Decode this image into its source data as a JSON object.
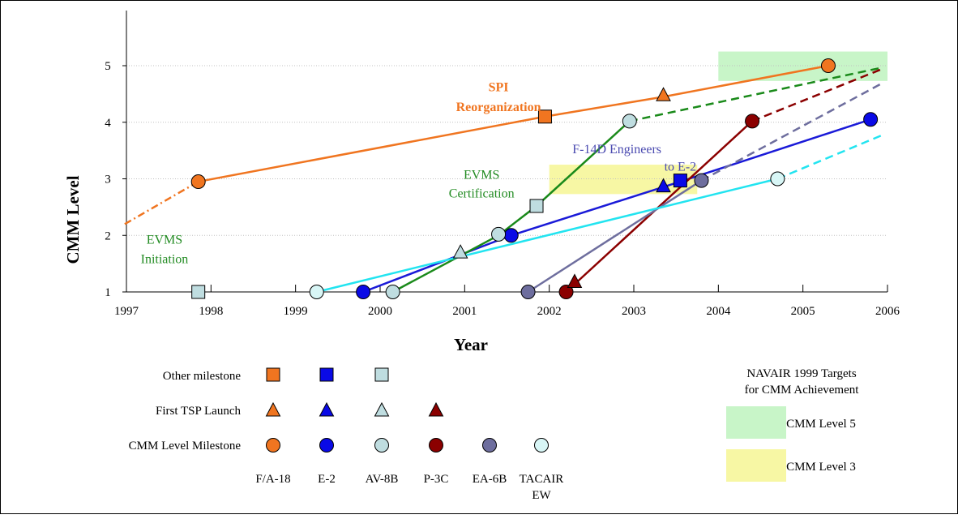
{
  "colors": {
    "F/A-18": "#f07520",
    "E-2": "#0a0ae6",
    "AV-8B": "#bfdde0",
    "P-3C": "#8b0000",
    "EA-6B": "#6e6e9e",
    "TACAIR EW": "#d8f6f6",
    "F/A-18 line": "#f07520",
    "E-2 line": "#1a1ad8",
    "AV-8B line": "#1a8a1a",
    "P-3C line": "#8b0000",
    "EA-6B line": "#6e6e9e",
    "TACAIR EW line": "#22e4f0",
    "target5": "#c8f5c8",
    "target3": "#f7f7a4",
    "grid": "#c0c0c0",
    "evms_text": "#228b22",
    "spi_text": "#f07520",
    "f14_text": "#4a4ab0"
  },
  "chart_data": {
    "type": "line",
    "xlabel": "Year",
    "ylabel": "CMM Level",
    "xlim": [
      1997,
      2006
    ],
    "ylim": [
      1,
      5.9
    ],
    "x_ticks": [
      "1997",
      "1998",
      "1999",
      "2000",
      "2001",
      "2002",
      "2003",
      "2004",
      "2005",
      "2006"
    ],
    "y_ticks": [
      "1",
      "2",
      "3",
      "4",
      "5"
    ],
    "grid": "horizontal dotted",
    "series": [
      {
        "name": "F/A-18",
        "points": [
          [
            1996.98,
            2.2
          ],
          [
            1997.85,
            2.95
          ],
          [
            2001.95,
            4.1
          ],
          [
            2003.35,
            4.45
          ],
          [
            2005.3,
            5.0
          ],
          [
            2005.95,
            5.0
          ]
        ],
        "segments": [
          [
            "dashdot",
            0,
            1
          ],
          [
            "solid",
            1,
            4
          ]
        ],
        "markers": [
          {
            "x": 1997.85,
            "y": 2.95,
            "shape": "circle"
          },
          {
            "x": 2001.95,
            "y": 4.1,
            "shape": "square"
          },
          {
            "x": 2003.35,
            "y": 4.48,
            "shape": "triangle"
          },
          {
            "x": 2005.3,
            "y": 5.0,
            "shape": "circle"
          }
        ]
      },
      {
        "name": "E-2",
        "points": [
          [
            1999.8,
            1.0
          ],
          [
            2001.55,
            2.0
          ],
          [
            2003.55,
            2.95
          ],
          [
            2005.8,
            4.05
          ]
        ],
        "segments": [
          [
            "solid",
            0,
            3
          ]
        ],
        "markers": [
          {
            "x": 1999.8,
            "y": 1.0,
            "shape": "circle"
          },
          {
            "x": 2001.55,
            "y": 2.0,
            "shape": "circle"
          },
          {
            "x": 2003.35,
            "y": 2.87,
            "shape": "triangle"
          },
          {
            "x": 2003.55,
            "y": 2.97,
            "shape": "square"
          },
          {
            "x": 2005.8,
            "y": 4.05,
            "shape": "circle"
          }
        ]
      },
      {
        "name": "AV-8B",
        "points": [
          [
            2000.15,
            1.0
          ],
          [
            2001.4,
            2.0
          ],
          [
            2001.85,
            2.52
          ],
          [
            2002.95,
            4.02
          ],
          [
            2005.95,
            4.97
          ]
        ],
        "segments": [
          [
            "solid",
            0,
            3
          ],
          [
            "dash",
            3,
            4
          ]
        ],
        "markers": [
          {
            "x": 2000.15,
            "y": 1.0,
            "shape": "circle"
          },
          {
            "x": 2001.4,
            "y": 2.02,
            "shape": "circle"
          },
          {
            "x": 2000.95,
            "y": 1.7,
            "shape": "triangle"
          },
          {
            "x": 2001.85,
            "y": 2.52,
            "shape": "square"
          },
          {
            "x": 2002.95,
            "y": 4.02,
            "shape": "circle"
          },
          {
            "x": 1997.85,
            "y": 1.0,
            "shape": "square"
          }
        ]
      },
      {
        "name": "P-3C",
        "points": [
          [
            2002.2,
            1.0
          ],
          [
            2004.4,
            4.02
          ],
          [
            2005.95,
            4.95
          ]
        ],
        "segments": [
          [
            "solid",
            0,
            1
          ],
          [
            "dash",
            1,
            2
          ]
        ],
        "markers": [
          {
            "x": 2002.2,
            "y": 1.0,
            "shape": "circle"
          },
          {
            "x": 2002.3,
            "y": 1.18,
            "shape": "triangle"
          },
          {
            "x": 2004.4,
            "y": 4.02,
            "shape": "circle"
          }
        ]
      },
      {
        "name": "EA-6B",
        "points": [
          [
            2001.75,
            1.0
          ],
          [
            2003.8,
            2.97
          ],
          [
            2005.95,
            4.7
          ]
        ],
        "segments": [
          [
            "solid",
            0,
            1
          ],
          [
            "dash",
            1,
            2
          ]
        ],
        "markers": [
          {
            "x": 2001.75,
            "y": 1.0,
            "shape": "circle"
          },
          {
            "x": 2003.8,
            "y": 2.97,
            "shape": "circle"
          }
        ]
      },
      {
        "name": "TACAIR EW",
        "points": [
          [
            1999.25,
            1.0
          ],
          [
            2004.7,
            3.0
          ],
          [
            2005.95,
            3.78
          ]
        ],
        "segments": [
          [
            "solid",
            0,
            1
          ],
          [
            "dash",
            1,
            2
          ]
        ],
        "markers": [
          {
            "x": 1999.25,
            "y": 1.0,
            "shape": "circle"
          },
          {
            "x": 2004.7,
            "y": 3.0,
            "shape": "circle"
          }
        ]
      }
    ],
    "target_regions": [
      {
        "name": "CMM Level 5",
        "x": [
          2004.0,
          2006.0
        ],
        "y": [
          4.73,
          5.25
        ]
      },
      {
        "name": "CMM Level 3",
        "x": [
          2002.0,
          2003.75
        ],
        "y": [
          2.73,
          3.25
        ]
      }
    ],
    "annotations": [
      {
        "text": "SPI",
        "x": 2001.4,
        "y": 4.55,
        "style": "spi"
      },
      {
        "text": "Reorganization",
        "x": 2001.4,
        "y": 4.2,
        "style": "spi"
      },
      {
        "text": "EVMS",
        "x": 2001.2,
        "y": 3.0,
        "style": "evms"
      },
      {
        "text": "Certification",
        "x": 2001.2,
        "y": 2.67,
        "style": "evms"
      },
      {
        "text": "EVMS",
        "x": 1997.45,
        "y": 1.85,
        "style": "evms"
      },
      {
        "text": "Initiation",
        "x": 1997.45,
        "y": 1.51,
        "style": "evms"
      },
      {
        "text": "F-14D Engineers",
        "x": 2002.8,
        "y": 3.45,
        "style": "f14"
      },
      {
        "text": "to E-2",
        "x": 2003.55,
        "y": 3.14,
        "style": "f14"
      }
    ]
  },
  "legend": {
    "rows": [
      {
        "label": "Other milestone",
        "shape": "square",
        "series": [
          "F/A-18",
          "E-2",
          "AV-8B"
        ]
      },
      {
        "label": "First TSP Launch",
        "shape": "triangle",
        "series": [
          "F/A-18",
          "E-2",
          "AV-8B",
          "P-3C"
        ]
      },
      {
        "label": "CMM Level Milestone",
        "shape": "circle",
        "series": [
          "F/A-18",
          "E-2",
          "AV-8B",
          "P-3C",
          "EA-6B",
          "TACAIR EW"
        ]
      }
    ],
    "columns": [
      "F/A-18",
      "E-2",
      "AV-8B",
      "P-3C",
      "EA-6B",
      "TACAIR\nEW"
    ],
    "col_label_1": "F/A-18",
    "col_label_2": "E-2",
    "col_label_3": "AV-8B",
    "col_label_4": "P-3C",
    "col_label_5": "EA-6B",
    "col_label_6a": "TACAIR",
    "col_label_6b": "EW",
    "row_label_1": "Other milestone",
    "row_label_2": "First TSP Launch",
    "row_label_3": "CMM Level Milestone"
  },
  "targets_legend": {
    "title_line1": "NAVAIR 1999 Targets",
    "title_line2": "for CMM Achievement",
    "level5": "CMM Level 5",
    "level3": "CMM Level 3"
  }
}
